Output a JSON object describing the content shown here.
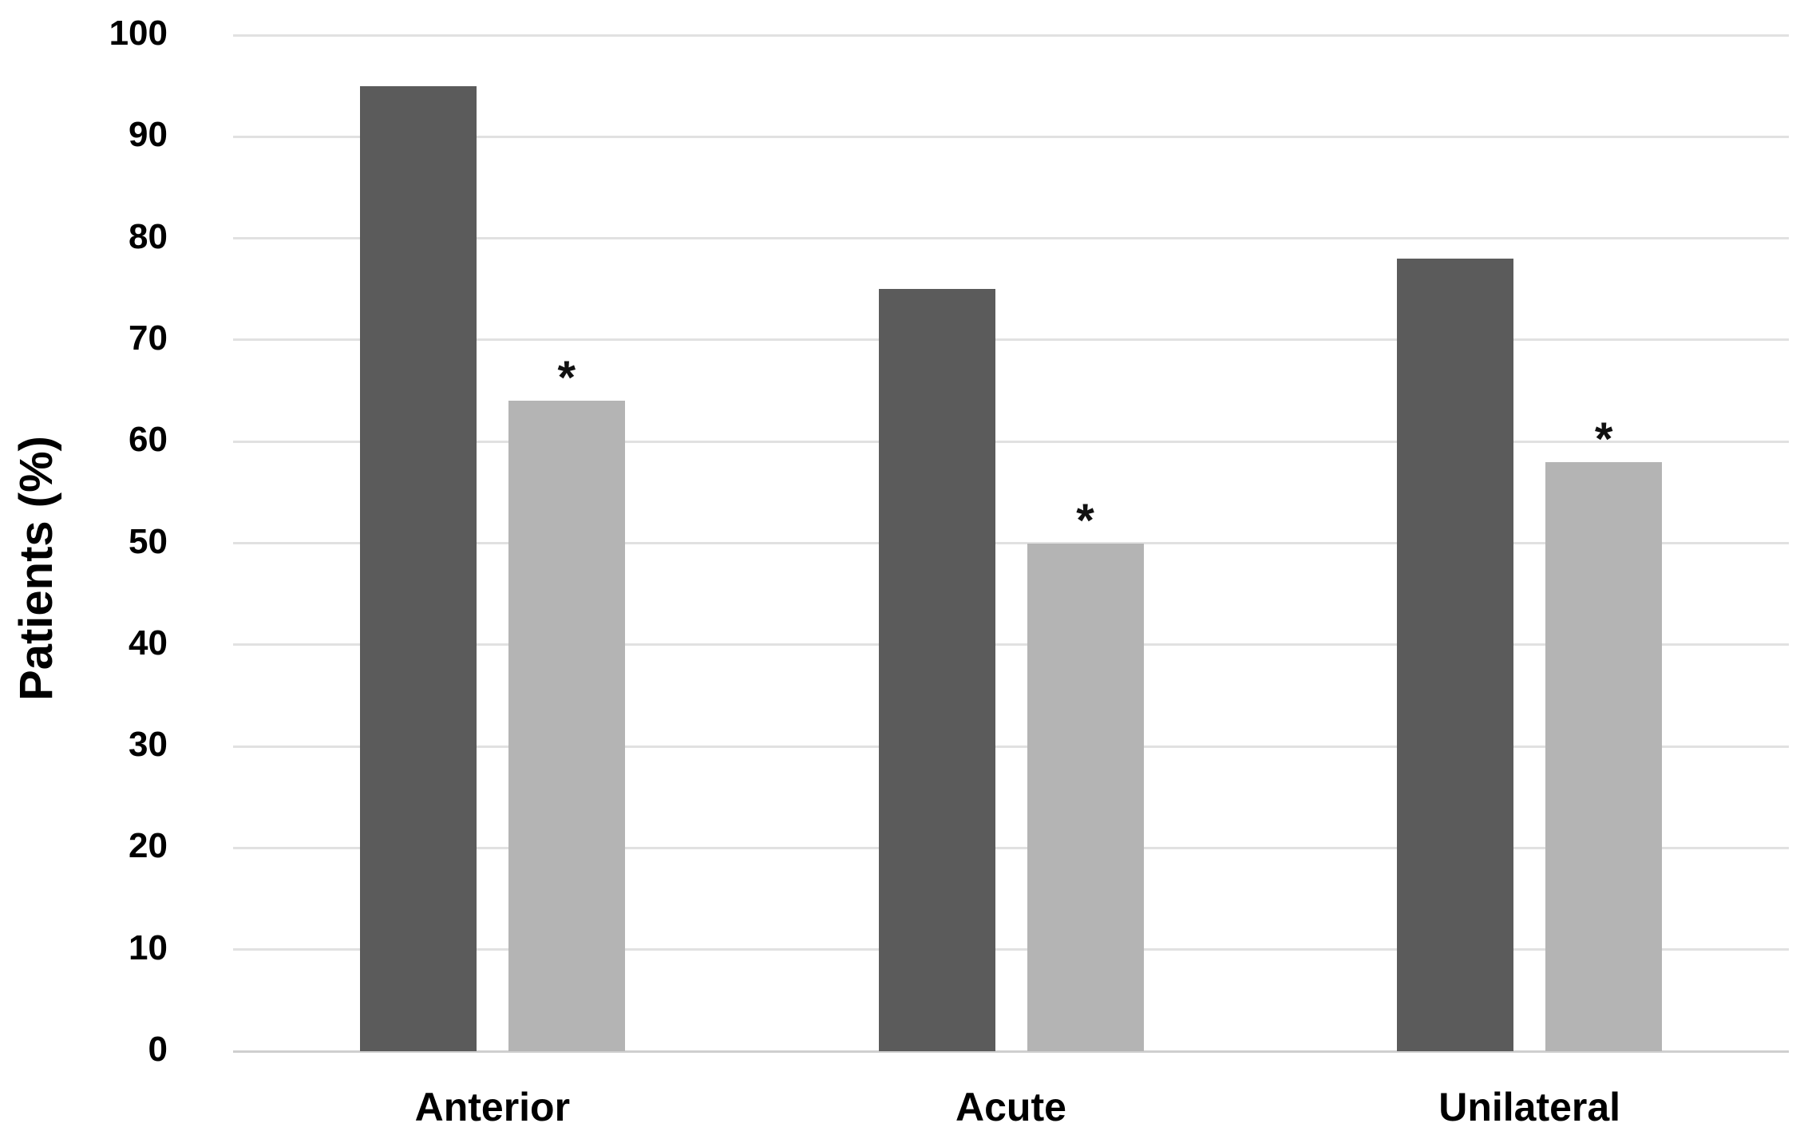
{
  "figure": {
    "background_color": "#ffffff",
    "text_color": "#000000",
    "gridline_color": "#e1e1e1",
    "baseline_color": "#cfcfcf"
  },
  "chart_data": {
    "type": "bar",
    "title": "",
    "xlabel": "",
    "ylabel": "Patients (%)",
    "ylim": [
      0,
      100
    ],
    "yticks": [
      0,
      10,
      20,
      30,
      40,
      50,
      60,
      70,
      80,
      90,
      100
    ],
    "grid": "horizontal-on",
    "legend_position": "none",
    "categories": [
      "Anterior",
      "Acute",
      "Unilateral"
    ],
    "series": [
      {
        "name": "dark-gray-series",
        "color": "#5b5b5b",
        "values": [
          95,
          75,
          78
        ],
        "significance": [
          false,
          false,
          false
        ]
      },
      {
        "name": "light-gray-series",
        "color": "#b4b4b4",
        "values": [
          64,
          50,
          58
        ],
        "significance": [
          true,
          true,
          true
        ]
      }
    ],
    "significance_marker": "*"
  }
}
